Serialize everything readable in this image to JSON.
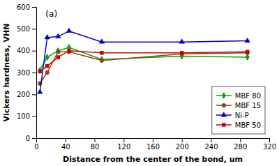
{
  "chart_data": {
    "type": "line",
    "title": "(a)",
    "xlabel": "Distance from the center of the bond, um",
    "ylabel": "Vickers hardness, VHN",
    "x": [
      5,
      15,
      30,
      45,
      90,
      200,
      290
    ],
    "xlim": [
      0,
      320
    ],
    "ylim": [
      0,
      600
    ],
    "xticks": [
      0,
      40,
      80,
      120,
      160,
      200,
      240,
      280,
      320
    ],
    "yticks": [
      0,
      100,
      200,
      300,
      400,
      500,
      600
    ],
    "grid": false,
    "legend": "lower right",
    "series": [
      {
        "name": "MBF 80",
        "color": "#00aa00",
        "marker": "diamond",
        "values": [
          310,
          370,
          400,
          415,
          360,
          375,
          370
        ]
      },
      {
        "name": "MBF 15",
        "color": "#8B4513",
        "marker": "circle",
        "values": [
          250,
          300,
          395,
          395,
          355,
          385,
          390
        ]
      },
      {
        "name": "Ni-P",
        "color": "#0000cc",
        "marker": "triangle",
        "values": [
          210,
          460,
          465,
          490,
          440,
          440,
          445
        ]
      },
      {
        "name": "MBF 50",
        "color": "#cc0000",
        "marker": "square",
        "values": [
          305,
          330,
          370,
          400,
          390,
          390,
          395
        ]
      }
    ]
  }
}
